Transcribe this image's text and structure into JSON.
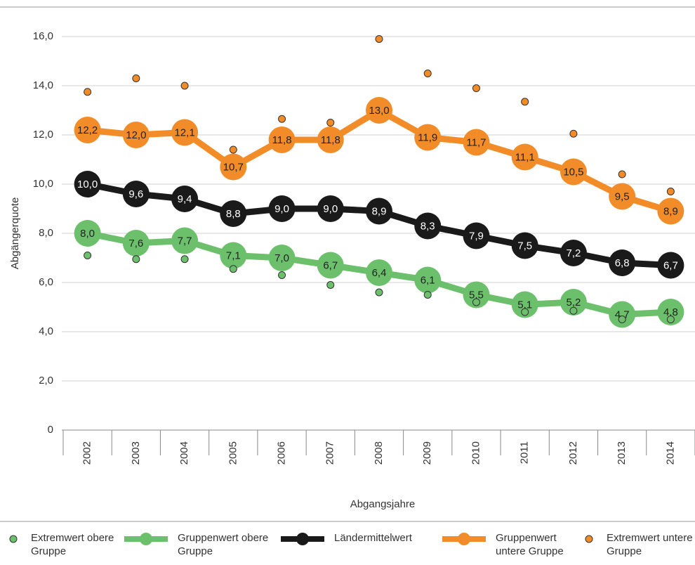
{
  "chart_data": {
    "type": "line",
    "categories": [
      "2002",
      "2003",
      "2004",
      "2005",
      "2006",
      "2007",
      "2008",
      "2009",
      "2010",
      "2011",
      "2012",
      "2013",
      "2014"
    ],
    "x_label": "Abgangsjahre",
    "y_label": "Abgängerquote",
    "ylim": [
      0,
      16
    ],
    "yticks": [
      0,
      {
        "value": 2,
        "label": "2,0"
      },
      {
        "value": 4,
        "label": "4,0"
      },
      {
        "value": 6,
        "label": "6,0"
      },
      {
        "value": 8,
        "label": "8,0"
      },
      {
        "value": 10,
        "label": "10,0"
      },
      {
        "value": 12,
        "label": "12,0"
      },
      {
        "value": 14,
        "label": "14,0"
      },
      {
        "value": 16,
        "label": "16,0"
      }
    ],
    "grid": true,
    "legend": "bottom",
    "series": [
      {
        "name": "Extremwert obere Gruppe",
        "type": "scatter",
        "color": "#6cc06c",
        "values": [
          7.1,
          6.95,
          6.95,
          6.55,
          6.3,
          5.9,
          5.6,
          5.5,
          5.2,
          4.8,
          4.85,
          4.5,
          4.5
        ]
      },
      {
        "name": "Gruppenwert obere Gruppe",
        "type": "line",
        "color": "#6cc06c",
        "values": [
          8.0,
          7.6,
          7.7,
          7.1,
          7.0,
          6.7,
          6.4,
          6.1,
          5.5,
          5.1,
          5.2,
          4.7,
          4.8
        ],
        "value_labels": [
          "8,0",
          "7,6",
          "7,7",
          "7,1",
          "7,0",
          "6,7",
          "6,4",
          "6,1",
          "5,5",
          "5,1",
          "5,2",
          "4,7",
          "4,8"
        ]
      },
      {
        "name": "Ländermittelwert",
        "type": "line",
        "color": "#1a1a1a",
        "values": [
          10.0,
          9.6,
          9.4,
          8.8,
          9.0,
          9.0,
          8.9,
          8.3,
          7.9,
          7.5,
          7.2,
          6.8,
          6.7
        ],
        "value_labels": [
          "10,0",
          "9,6",
          "9,4",
          "8,8",
          "9,0",
          "9,0",
          "8,9",
          "8,3",
          "7,9",
          "7,5",
          "7,2",
          "6,8",
          "6,7"
        ]
      },
      {
        "name": "Gruppenwert untere Gruppe",
        "type": "line",
        "color": "#f28c28",
        "values": [
          12.2,
          12.0,
          12.1,
          10.7,
          11.8,
          11.8,
          13.0,
          11.9,
          11.7,
          11.1,
          10.5,
          9.5,
          8.9
        ],
        "value_labels": [
          "12,2",
          "12,0",
          "12,1",
          "10,7",
          "11,8",
          "11,8",
          "13,0",
          "11,9",
          "11,7",
          "11,1",
          "10,5",
          "9,5",
          "8,9"
        ]
      },
      {
        "name": "Extremwert untere Gruppe",
        "type": "scatter",
        "color": "#f28c28",
        "values": [
          13.75,
          14.3,
          14.0,
          11.4,
          12.65,
          12.5,
          15.9,
          14.5,
          13.9,
          13.35,
          12.05,
          10.4,
          9.7
        ]
      }
    ]
  }
}
